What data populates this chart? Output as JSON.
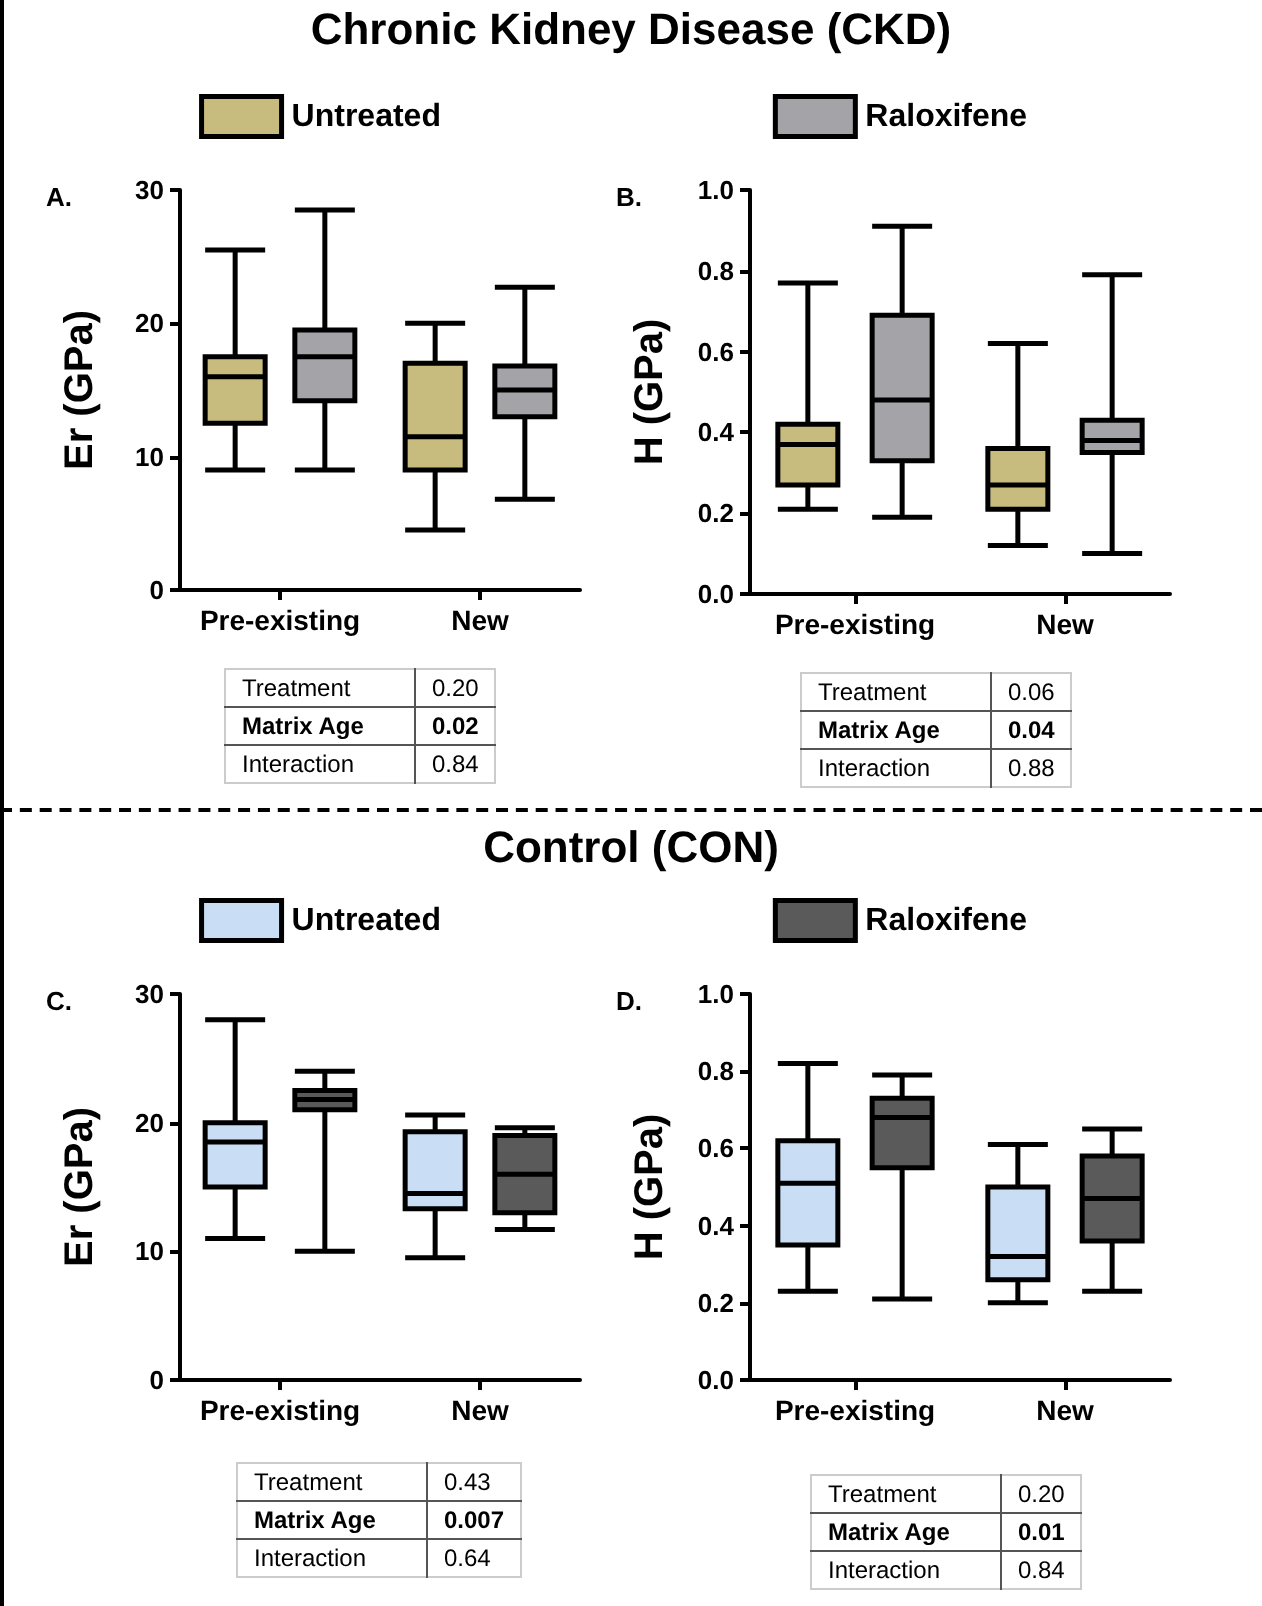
{
  "chart_data": [
    {
      "type": "box",
      "title": "Chronic Kidney Disease (CKD)",
      "ylabel": "Er (GPa)",
      "categories": [
        "Pre-existing",
        "New"
      ],
      "ylim": [
        0,
        30
      ],
      "yticks": [
        0,
        10,
        20,
        30
      ],
      "legend": "top",
      "annotations": [
        "A.",
        "Treatment",
        "0.20",
        "Matrix Age",
        "0.02",
        "Interaction",
        "0.84"
      ],
      "series": [
        {
          "name": "Untreated",
          "color": "#c8bb7e",
          "boxes": [
            {
              "low": 9,
              "q1": 12.5,
              "median": 16,
              "q3": 17.5,
              "high": 25.5
            },
            {
              "low": 4.5,
              "q1": 9,
              "median": 11.5,
              "q3": 17,
              "high": 20
            }
          ]
        },
        {
          "color": "#a4a4a8",
          "boxes": [
            {
              "low": 9,
              "q1": 14.2,
              "median": 17.5,
              "q3": 19.5,
              "high": 28.5
            },
            {
              "low": 6.8,
              "q1": 13,
              "median": 15,
              "q3": 16.8,
              "high": 22.7
            }
          ]
        }
      ]
    },
    {
      "type": "box",
      "ylabel": "H (GPa)",
      "categories": [
        "Pre-existing",
        "New"
      ],
      "ylim": [
        0,
        1
      ],
      "yticks": [
        {
          "value": 0,
          "label": "0.0"
        },
        {
          "value": 0.2,
          "label": "0.2"
        },
        {
          "value": 0.4,
          "label": "0.4"
        },
        {
          "value": 0.6,
          "label": "0.6"
        },
        {
          "value": 0.8,
          "label": "0.8"
        },
        {
          "value": 1,
          "label": "1.0"
        }
      ],
      "legend": "top",
      "annotations": [
        "B.",
        "Treatment",
        "0.06",
        "Matrix Age",
        "0.04",
        "Interaction",
        "0.88"
      ],
      "series": [
        {
          "color": "#c8bb7e",
          "boxes": [
            {
              "low": 0.21,
              "q1": 0.27,
              "median": 0.37,
              "q3": 0.42,
              "high": 0.77
            },
            {
              "low": 0.12,
              "q1": 0.21,
              "median": 0.27,
              "q3": 0.36,
              "high": 0.62
            }
          ]
        },
        {
          "name": "Raloxifene",
          "color": "#a4a4a8",
          "boxes": [
            {
              "low": 0.19,
              "q1": 0.33,
              "median": 0.48,
              "q3": 0.69,
              "high": 0.91
            },
            {
              "low": 0.1,
              "q1": 0.35,
              "median": 0.38,
              "q3": 0.43,
              "high": 0.79
            }
          ]
        }
      ]
    },
    {
      "type": "box",
      "title": "Control (CON)",
      "ylabel": "Er (GPa)",
      "categories": [
        "Pre-existing",
        "New"
      ],
      "ylim": [
        0,
        30
      ],
      "yticks": [
        0,
        10,
        20,
        30
      ],
      "legend": "top",
      "annotations": [
        "C.",
        "Treatment",
        "0.43",
        "Matrix Age",
        "0.007",
        "Interaction",
        "0.64"
      ],
      "series": [
        {
          "name": "Untreated",
          "color": "#c9def5",
          "boxes": [
            {
              "low": 11,
              "q1": 15,
              "median": 18.5,
              "q3": 20,
              "high": 28
            },
            {
              "low": 9.5,
              "q1": 13.3,
              "median": 14.5,
              "q3": 19.3,
              "high": 20.6
            }
          ]
        },
        {
          "color": "#5a5a5a",
          "boxes": [
            {
              "low": 10,
              "q1": 21,
              "median": 21.8,
              "q3": 22.5,
              "high": 24
            },
            {
              "low": 11.7,
              "q1": 13,
              "median": 16,
              "q3": 19,
              "high": 19.6
            }
          ]
        }
      ]
    },
    {
      "type": "box",
      "ylabel": "H (GPa)",
      "categories": [
        "Pre-existing",
        "New"
      ],
      "ylim": [
        0,
        1
      ],
      "yticks": [
        {
          "value": 0,
          "label": "0.0"
        },
        {
          "value": 0.2,
          "label": "0.2"
        },
        {
          "value": 0.4,
          "label": "0.4"
        },
        {
          "value": 0.6,
          "label": "0.6"
        },
        {
          "value": 0.8,
          "label": "0.8"
        },
        {
          "value": 1,
          "label": "1.0"
        }
      ],
      "legend": "top",
      "annotations": [
        "D.",
        "Treatment",
        "0.20",
        "Matrix Age",
        "0.01",
        "Interaction",
        "0.84"
      ],
      "series": [
        {
          "color": "#c9def5",
          "boxes": [
            {
              "low": 0.23,
              "q1": 0.35,
              "median": 0.51,
              "q3": 0.62,
              "high": 0.82
            },
            {
              "low": 0.2,
              "q1": 0.26,
              "median": 0.32,
              "q3": 0.5,
              "high": 0.61
            }
          ]
        },
        {
          "name": "Raloxifene",
          "color": "#5a5a5a",
          "boxes": [
            {
              "low": 0.21,
              "q1": 0.55,
              "median": 0.68,
              "q3": 0.73,
              "high": 0.79
            },
            {
              "low": 0.23,
              "q1": 0.36,
              "median": 0.47,
              "q3": 0.58,
              "high": 0.65
            }
          ]
        }
      ]
    }
  ]
}
